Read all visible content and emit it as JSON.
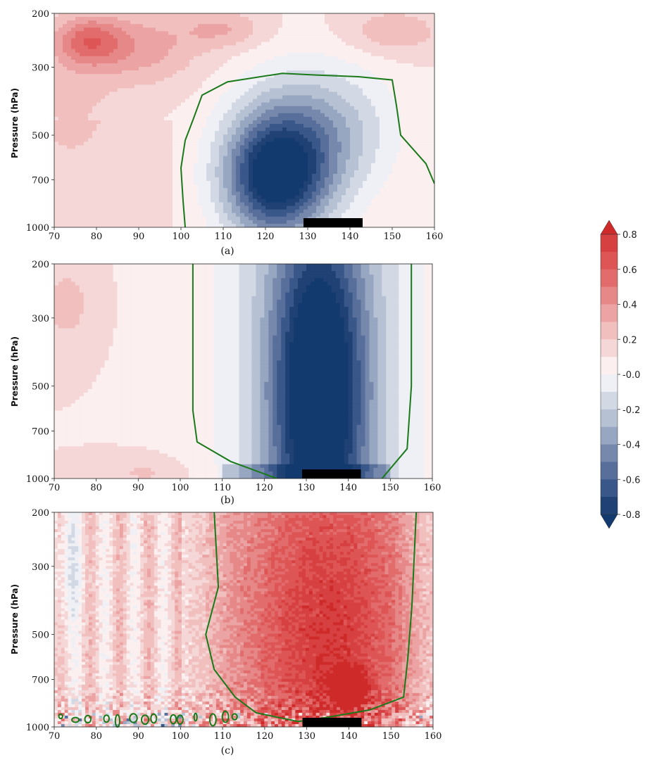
{
  "chart_data": {
    "type": "heatmap",
    "ylabel": "Pressure (hPa)",
    "xticks": [
      70,
      80,
      90,
      100,
      110,
      120,
      130,
      140,
      150,
      160
    ],
    "yticks": [
      200,
      300,
      500,
      700,
      1000
    ],
    "xlim": [
      70,
      160
    ],
    "ylim": [
      1000,
      200
    ],
    "panels": [
      {
        "label": "(a)",
        "pattern": "dipole",
        "warm_field": [
          {
            "x": 78,
            "y": 245,
            "v": 0.35,
            "sx": 8,
            "sy": 0.18
          },
          {
            "x": 90,
            "y": 260,
            "v": 0.25,
            "sx": 14,
            "sy": 0.28
          },
          {
            "x": 74,
            "y": 380,
            "v": 0.12,
            "sx": 10,
            "sy": 0.5
          },
          {
            "x": 110,
            "y": 225,
            "v": 0.2,
            "sx": 10,
            "sy": 0.15
          },
          {
            "x": 150,
            "y": 230,
            "v": 0.18,
            "sx": 12,
            "sy": 0.18
          }
        ],
        "cold_field": [
          {
            "x": 122,
            "y": 700,
            "v": -0.8,
            "sx": 12,
            "sy": 0.45
          },
          {
            "x": 138,
            "y": 480,
            "v": -0.25,
            "sx": 14,
            "sy": 0.5
          }
        ],
        "green_contour": [
          [
            101,
            1000
          ],
          [
            100.5,
            820
          ],
          [
            100,
            640
          ],
          [
            101,
            520
          ],
          [
            103,
            440
          ],
          [
            105,
            370
          ],
          [
            111,
            335
          ],
          [
            124,
            314
          ],
          [
            132,
            318
          ],
          [
            142,
            322
          ],
          [
            150,
            330
          ],
          [
            151,
            400
          ],
          [
            152,
            500
          ],
          [
            158,
            620
          ],
          [
            160,
            720
          ]
        ]
      },
      {
        "label": "(b)",
        "pattern": "cold_column",
        "cold_field": [
          {
            "x": 133,
            "y": 520,
            "v": -0.9,
            "sx": 11,
            "sy": 1.2
          }
        ],
        "warm_field": [
          {
            "x": 73,
            "y": 270,
            "v": 0.15,
            "sx": 6,
            "sy": 0.3
          },
          {
            "x": 92,
            "y": 960,
            "v": 0.12,
            "sx": 10,
            "sy": 0.12
          }
        ],
        "green_contour": [
          [
            123,
            1000
          ],
          [
            112,
            880
          ],
          [
            104,
            760
          ],
          [
            103,
            600
          ],
          [
            103,
            400
          ],
          [
            103,
            200
          ]
        ],
        "green_contour_right": [
          [
            155,
            200
          ],
          [
            155,
            500
          ],
          [
            154,
            800
          ],
          [
            148,
            1000
          ]
        ]
      },
      {
        "label": "(c)",
        "pattern": "noisy_warm",
        "warm_field": [
          {
            "x": 135,
            "y": 500,
            "v": 0.5,
            "sx": 20,
            "sy": 1.5
          },
          {
            "x": 140,
            "y": 750,
            "v": 0.7,
            "sx": 4,
            "sy": 0.12
          }
        ],
        "cold_field": [
          {
            "x": 73,
            "y": 300,
            "v": -0.2,
            "sx": 3,
            "sy": 0.5
          }
        ],
        "green_contour": [
          [
            108,
            200
          ],
          [
            109,
            350
          ],
          [
            106,
            500
          ],
          [
            108,
            650
          ],
          [
            113,
            800
          ],
          [
            118,
            900
          ],
          [
            128,
            960
          ],
          [
            135,
            930
          ],
          [
            145,
            880
          ],
          [
            153,
            800
          ],
          [
            154,
            600
          ],
          [
            155,
            400
          ],
          [
            156,
            200
          ]
        ]
      }
    ],
    "colorbar": {
      "ticks": [
        "0.8",
        "0.6",
        "0.4",
        "0.2",
        "-0.0",
        "-0.2",
        "-0.4",
        "-0.6",
        "-0.8"
      ],
      "levels": [
        0.8,
        0.7,
        0.6,
        0.5,
        0.4,
        0.3,
        0.2,
        0.1,
        0.0,
        -0.1,
        -0.2,
        -0.3,
        -0.4,
        -0.5,
        -0.6,
        -0.7,
        -0.8
      ],
      "colors": [
        "#cf2a2a",
        "#d74040",
        "#de5555",
        "#e26c6c",
        "#e68888",
        "#eca3a3",
        "#f2bfbf",
        "#f6d7d7",
        "#fbefef",
        "#eef0f5",
        "#d3d9e4",
        "#b7c1d4",
        "#97a6c1",
        "#7689ad",
        "#576f9a",
        "#3a5789",
        "#1f4174",
        "#133a6e"
      ],
      "extend_top_color": "#cf2a2a",
      "extend_bottom_color": "#133a6e"
    },
    "black_bar": {
      "x0": 129,
      "x1": 143
    }
  }
}
